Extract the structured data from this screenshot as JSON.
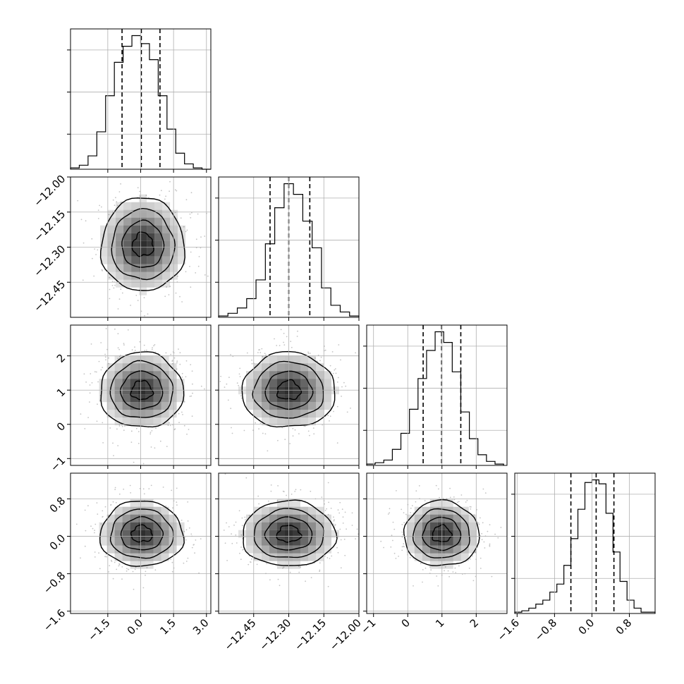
{
  "chart_data": {
    "type": "scatter",
    "title": "",
    "xlabel": "",
    "ylabel": "",
    "parameters": [
      {
        "hist_range": [
          -3.2,
          3.2
        ],
        "x_ticks": [
          {
            "v": -1.5,
            "label": "−1.5"
          },
          {
            "v": 0.0,
            "label": "0.0"
          },
          {
            "v": 1.5,
            "label": "1.5"
          },
          {
            "v": 3.0,
            "label": "3.0"
          }
        ],
        "y_ticks": [],
        "quantiles": [
          -0.85,
          0.03,
          0.88
        ],
        "hist_bins": [
          -3.2,
          -2.8,
          -2.4,
          -2.0,
          -1.6,
          -1.2,
          -0.8,
          -0.4,
          0.0,
          0.4,
          0.8,
          1.2,
          1.6,
          2.0,
          2.4,
          2.8,
          3.2
        ],
        "hist_counts": [
          1,
          3,
          10,
          28,
          55,
          80,
          92,
          100,
          94,
          82,
          55,
          30,
          12,
          4,
          1,
          0
        ],
        "hist_max": 105
      },
      {
        "hist_range": [
          -12.6,
          -12.0
        ],
        "x_ticks": [
          {
            "v": -12.45,
            "label": "−12.45"
          },
          {
            "v": -12.3,
            "label": "−12.30"
          },
          {
            "v": -12.15,
            "label": "−12.15"
          },
          {
            "v": -12.0,
            "label": "−12.00"
          }
        ],
        "y_ticks": [
          {
            "v": -12.0,
            "label": "−12.00"
          },
          {
            "v": -12.15,
            "label": "−12.15"
          },
          {
            "v": -12.3,
            "label": "−12.30"
          },
          {
            "v": -12.45,
            "label": "−12.45"
          }
        ],
        "quantiles": [
          -12.38,
          -12.3,
          -12.21
        ],
        "hist_bins": [
          -12.6,
          -12.56,
          -12.52,
          -12.48,
          -12.44,
          -12.4,
          -12.36,
          -12.32,
          -12.28,
          -12.24,
          -12.2,
          -12.16,
          -12.12,
          -12.08,
          -12.04,
          -12.0
        ],
        "hist_counts": [
          1,
          3,
          7,
          14,
          28,
          55,
          82,
          100,
          92,
          72,
          52,
          22,
          9,
          4,
          1
        ],
        "hist_max": 105
      },
      {
        "hist_range": [
          -1.2,
          2.9
        ],
        "x_ticks": [
          {
            "v": -1,
            "label": "−1"
          },
          {
            "v": 0,
            "label": "0"
          },
          {
            "v": 1,
            "label": "1"
          },
          {
            "v": 2,
            "label": "2"
          }
        ],
        "y_ticks": [
          {
            "v": 2,
            "label": "2"
          },
          {
            "v": 1,
            "label": "1"
          },
          {
            "v": 0,
            "label": "0"
          },
          {
            "v": -1,
            "label": "−1"
          }
        ],
        "quantiles": [
          0.45,
          0.99,
          1.55
        ],
        "hist_bins": [
          -1.2,
          -0.95,
          -0.7,
          -0.45,
          -0.2,
          0.05,
          0.3,
          0.55,
          0.8,
          1.05,
          1.3,
          1.55,
          1.8,
          2.05,
          2.3,
          2.55,
          2.8
        ],
        "hist_counts": [
          1,
          2,
          4,
          12,
          24,
          42,
          65,
          86,
          100,
          92,
          70,
          40,
          20,
          8,
          3,
          1
        ],
        "hist_max": 105
      },
      {
        "hist_range": [
          -1.65,
          1.35
        ],
        "x_ticks": [
          {
            "v": -1.6,
            "label": "−1.6"
          },
          {
            "v": -0.8,
            "label": "−0.8"
          },
          {
            "v": 0.0,
            "label": "0.0"
          },
          {
            "v": 0.8,
            "label": "0.8"
          }
        ],
        "y_ticks": [
          {
            "v": 0.8,
            "label": "0.8"
          },
          {
            "v": 0.0,
            "label": "0.0"
          },
          {
            "v": -0.8,
            "label": "−0.8"
          },
          {
            "v": -1.6,
            "label": "−1.6"
          }
        ],
        "quantiles": [
          -0.45,
          0.09,
          0.47
        ],
        "hist_bins": [
          -1.65,
          -1.5,
          -1.35,
          -1.2,
          -1.05,
          -0.9,
          -0.75,
          -0.6,
          -0.45,
          -0.3,
          -0.15,
          0.0,
          0.15,
          0.3,
          0.45,
          0.6,
          0.75,
          0.9,
          1.05,
          1.2,
          1.35
        ],
        "hist_counts": [
          1,
          2,
          4,
          7,
          10,
          16,
          22,
          36,
          56,
          78,
          98,
          100,
          97,
          75,
          46,
          24,
          10,
          4,
          1,
          1
        ],
        "hist_max": 105
      }
    ],
    "pairs": [
      {
        "row": 1,
        "col": 0,
        "cx": 0.1,
        "cy": -12.29,
        "sx": 0.95,
        "sy": 0.1
      },
      {
        "row": 2,
        "col": 0,
        "cx": 0.05,
        "cy": 0.99,
        "sx": 0.95,
        "sy": 0.55
      },
      {
        "row": 2,
        "col": 1,
        "cx": -12.3,
        "cy": 0.99,
        "sx": 0.1,
        "sy": 0.55
      },
      {
        "row": 3,
        "col": 0,
        "cx": 0.05,
        "cy": 0.05,
        "sx": 0.95,
        "sy": 0.35
      },
      {
        "row": 3,
        "col": 1,
        "cx": -12.3,
        "cy": 0.05,
        "sx": 0.1,
        "sy": 0.35
      },
      {
        "row": 3,
        "col": 2,
        "cx": 0.99,
        "cy": 0.05,
        "sx": 0.55,
        "sy": 0.35
      }
    ],
    "contour_levels_sigma": [
      0.5,
      1.0,
      1.5,
      2.0
    ],
    "scatter_points_per_panel": 480,
    "grid": true,
    "colors": {
      "axes": "#000000",
      "grid": "#b0b0b0",
      "scatter": "#c4c4c4",
      "density_fill": "#000000"
    }
  }
}
